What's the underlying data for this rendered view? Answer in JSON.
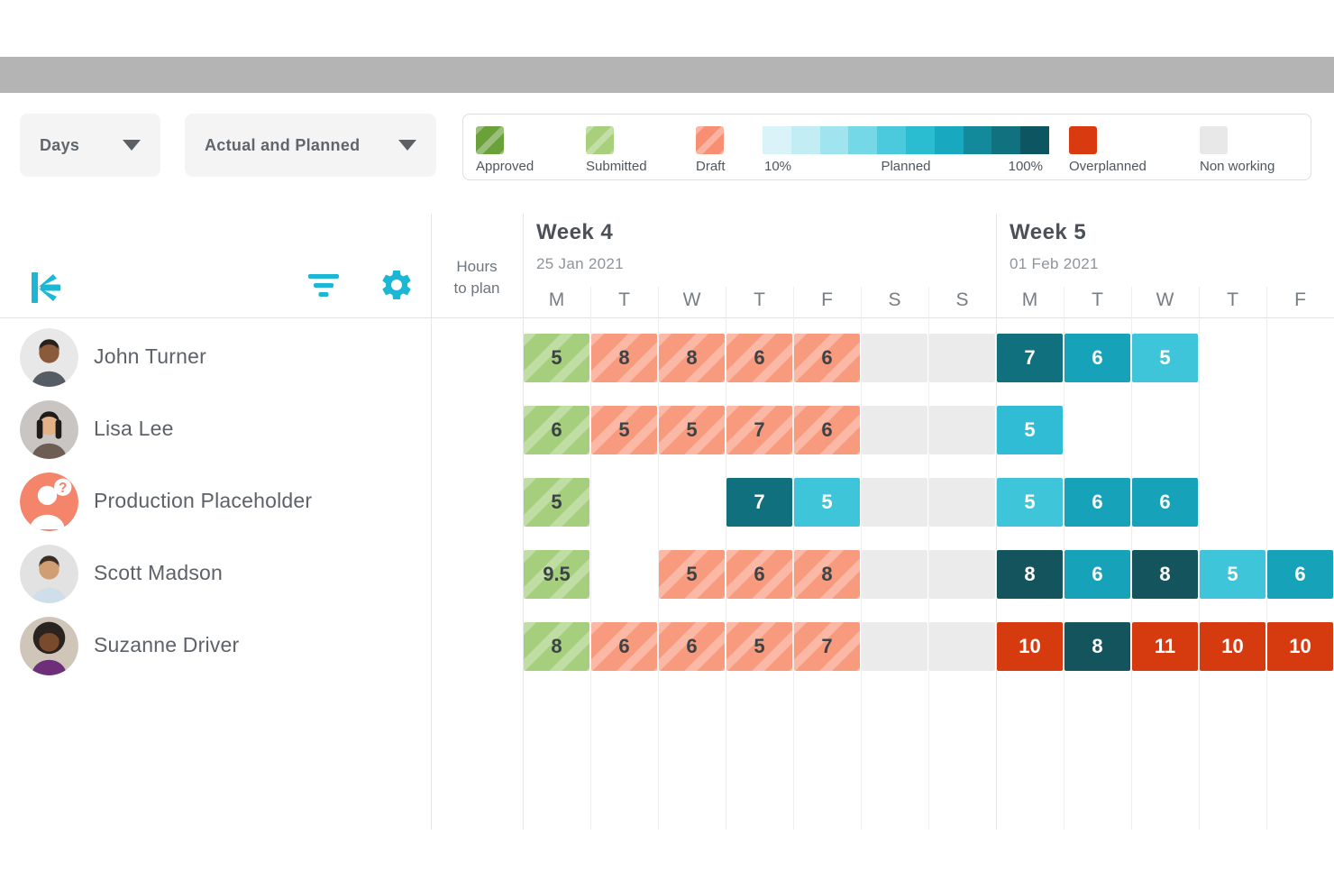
{
  "brand": {
    "accent": "#1cb7d5"
  },
  "window": {
    "titlebar_color": "#b4b4b4",
    "dot_count": 3
  },
  "toolbar": {
    "timescale_dropdown": {
      "label": "Days"
    },
    "view_dropdown": {
      "label": "Actual and Planned"
    }
  },
  "legend": {
    "items": [
      {
        "label": "Approved",
        "color": "#6ba13b",
        "striped": true
      },
      {
        "label": "Submitted",
        "color": "#a7cf7c",
        "striped": true
      },
      {
        "label": "Draft",
        "color": "#f88f73",
        "striped": true
      }
    ],
    "planned_scale": {
      "start_label": "10%",
      "mid_label": "Planned",
      "end_label": "100%",
      "colors": [
        "#d9f3f8",
        "#c2edf4",
        "#9fe4ee",
        "#74d8e6",
        "#4bcadd",
        "#2abcd1",
        "#18a8c0",
        "#13899c",
        "#10717f",
        "#0d5560"
      ]
    },
    "overplanned": {
      "label": "Overplanned",
      "color": "#d93a10"
    },
    "nonworking": {
      "label": "Non working",
      "color": "#e8e8e8"
    }
  },
  "planner": {
    "hours_to_plan": [
      "Hours",
      "to plan"
    ],
    "weeks": [
      {
        "title": "Week 4",
        "date": "25 Jan 2021",
        "days": [
          "M",
          "T",
          "W",
          "T",
          "F",
          "S",
          "S"
        ]
      },
      {
        "title": "Week 5",
        "date": "01 Feb 2021",
        "days": [
          "M",
          "T",
          "W",
          "T",
          "F"
        ]
      }
    ],
    "cell_colors": {
      "submitted": "#a5cf7d",
      "draft": "#f89a7e",
      "nonworking": "#ebebeb",
      "overplanned": "#d63b10"
    },
    "people": [
      {
        "name": "John Turner",
        "avatar": {
          "kind": "photo",
          "style": "short",
          "bg": "#e8e8e8",
          "skin": "#8a5a3b",
          "hair": "#26201d",
          "shirt": "#555c63"
        },
        "cells": [
          {
            "value": "5",
            "type": "submitted"
          },
          {
            "value": "8",
            "type": "draft"
          },
          {
            "value": "8",
            "type": "draft"
          },
          {
            "value": "6",
            "type": "draft"
          },
          {
            "value": "6",
            "type": "draft"
          },
          {
            "type": "nonworking"
          },
          {
            "type": "nonworking"
          },
          {
            "value": "7",
            "type": "planned",
            "shade": "#11707e"
          },
          {
            "value": "6",
            "type": "planned",
            "shade": "#16a3ba"
          },
          {
            "value": "5",
            "type": "planned",
            "shade": "#3ec5da"
          },
          {
            "type": "empty"
          },
          {
            "type": "empty"
          }
        ]
      },
      {
        "name": "Lisa Lee",
        "avatar": {
          "kind": "photo",
          "style": "long",
          "bg": "#c9c5c2",
          "skin": "#e3b287",
          "hair": "#1f1b1a",
          "shirt": "#6e5d52"
        },
        "cells": [
          {
            "value": "6",
            "type": "submitted"
          },
          {
            "value": "5",
            "type": "draft"
          },
          {
            "value": "5",
            "type": "draft"
          },
          {
            "value": "7",
            "type": "draft"
          },
          {
            "value": "6",
            "type": "draft"
          },
          {
            "type": "nonworking"
          },
          {
            "type": "nonworking"
          },
          {
            "value": "5",
            "type": "planned",
            "shade": "#2fbcd4"
          },
          {
            "type": "empty"
          },
          {
            "type": "empty"
          },
          {
            "type": "empty"
          },
          {
            "type": "empty"
          }
        ]
      },
      {
        "name": "Production Placeholder",
        "avatar": {
          "kind": "placeholder",
          "bg": "#f4846a",
          "badge": "?"
        },
        "cells": [
          {
            "value": "5",
            "type": "submitted"
          },
          {
            "type": "empty"
          },
          {
            "type": "empty"
          },
          {
            "value": "7",
            "type": "planned",
            "shade": "#11707e"
          },
          {
            "value": "5",
            "type": "planned",
            "shade": "#3ec5da"
          },
          {
            "type": "nonworking"
          },
          {
            "type": "nonworking"
          },
          {
            "value": "5",
            "type": "planned",
            "shade": "#3ec5da"
          },
          {
            "value": "6",
            "type": "planned",
            "shade": "#16a3ba"
          },
          {
            "value": "6",
            "type": "planned",
            "shade": "#16a3ba"
          },
          {
            "type": "empty"
          },
          {
            "type": "empty"
          }
        ]
      },
      {
        "name": "Scott Madson",
        "avatar": {
          "kind": "photo",
          "style": "short",
          "bg": "#e2e2e2",
          "skin": "#d19e73",
          "hair": "#3a2e24",
          "shirt": "#cfdfe9"
        },
        "cells": [
          {
            "value": "9.5",
            "type": "submitted"
          },
          {
            "type": "empty"
          },
          {
            "value": "5",
            "type": "draft"
          },
          {
            "value": "6",
            "type": "draft"
          },
          {
            "value": "8",
            "type": "draft"
          },
          {
            "type": "nonworking"
          },
          {
            "type": "nonworking"
          },
          {
            "value": "8",
            "type": "planned",
            "shade": "#14545d"
          },
          {
            "value": "6",
            "type": "planned",
            "shade": "#16a3ba"
          },
          {
            "value": "8",
            "type": "planned",
            "shade": "#14545d"
          },
          {
            "value": "5",
            "type": "planned",
            "shade": "#3ec5da"
          },
          {
            "value": "6",
            "type": "planned",
            "shade": "#16a3ba"
          }
        ]
      },
      {
        "name": "Suzanne Driver",
        "avatar": {
          "kind": "photo",
          "style": "afro",
          "bg": "#cfc6b9",
          "skin": "#7a4a2c",
          "hair": "#2a2320",
          "shirt": "#6d2f7a"
        },
        "cells": [
          {
            "value": "8",
            "type": "submitted"
          },
          {
            "value": "6",
            "type": "draft"
          },
          {
            "value": "6",
            "type": "draft"
          },
          {
            "value": "5",
            "type": "draft"
          },
          {
            "value": "7",
            "type": "draft"
          },
          {
            "type": "nonworking"
          },
          {
            "type": "nonworking"
          },
          {
            "value": "10",
            "type": "overplanned"
          },
          {
            "value": "8",
            "type": "planned",
            "shade": "#14545d"
          },
          {
            "value": "11",
            "type": "overplanned"
          },
          {
            "value": "10",
            "type": "overplanned"
          },
          {
            "value": "10",
            "type": "overplanned"
          }
        ]
      }
    ]
  }
}
